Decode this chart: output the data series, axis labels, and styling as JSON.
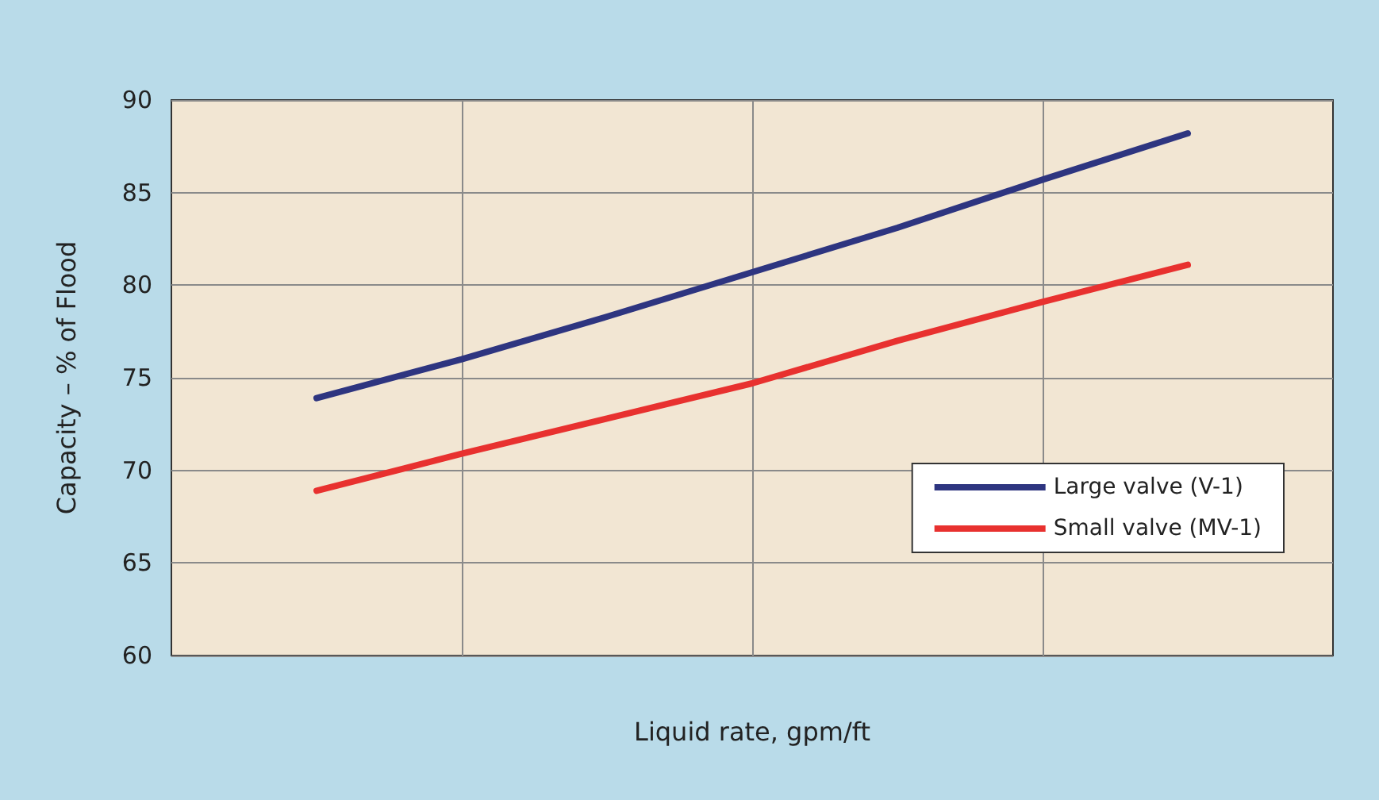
{
  "chart_data": {
    "type": "line",
    "xlabel": "Liquid rate, gpm/ft",
    "ylabel": "Capacity – % of Flood",
    "categories": [
      null,
      null,
      null,
      null,
      null,
      null,
      null
    ],
    "series": [
      {
        "name": "Large valve (V-1)",
        "color": "#2e3580",
        "values": [
          73.9,
          76.0,
          78.3,
          80.7,
          83.1,
          85.7,
          88.2
        ]
      },
      {
        "name": "Small valve (MV-1)",
        "color": "#e8312f",
        "values": [
          68.9,
          70.9,
          72.8,
          74.7,
          77.0,
          79.1,
          81.1
        ]
      }
    ],
    "ylim": [
      60,
      90
    ],
    "yticks": [
      60,
      65,
      70,
      75,
      80,
      85,
      90
    ],
    "grid": true,
    "legend": "bottom right",
    "tick_labels": "y",
    "marker": "none",
    "line_style": "solid"
  }
}
